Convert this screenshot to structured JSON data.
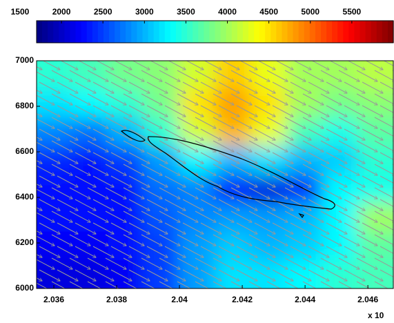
{
  "chart_data": {
    "type": "heatmap",
    "colormap": "jet",
    "clim": [
      1700,
      6000
    ],
    "cticks": [
      1500,
      2000,
      2500,
      3000,
      3500,
      4000,
      4500,
      5000,
      5500
    ],
    "xlim": [
      2.03545,
      2.04681
    ],
    "xticks": [
      2.036,
      2.038,
      2.04,
      2.042,
      2.044,
      2.046
    ],
    "ylim": [
      6000,
      7000
    ],
    "yticks": [
      6000,
      6200,
      6400,
      6600,
      6800,
      7000
    ],
    "x_multiplier": "x 10",
    "values": [
      [
        3500,
        3600,
        3800,
        3900,
        4200,
        4600,
        4300,
        4000,
        4000,
        4100
      ],
      [
        3200,
        3300,
        3500,
        3800,
        4500,
        4800,
        4500,
        4000,
        3800,
        3900
      ],
      [
        2800,
        2700,
        3000,
        3500,
        4200,
        4700,
        4300,
        3600,
        3400,
        3700
      ],
      [
        2400,
        2300,
        2500,
        2900,
        3300,
        3000,
        3200,
        3000,
        3100,
        3500
      ],
      [
        2300,
        2300,
        2300,
        2700,
        2800,
        2300,
        2100,
        2400,
        3300,
        3400
      ],
      [
        2300,
        2300,
        2300,
        2600,
        2800,
        2900,
        2900,
        3000,
        3300,
        4000
      ],
      [
        2200,
        2200,
        2300,
        2500,
        2900,
        3100,
        3000,
        3100,
        3300,
        3700
      ],
      [
        2100,
        2100,
        2200,
        2500,
        2900,
        3200,
        3200,
        3300,
        3500,
        3600
      ]
    ]
  }
}
